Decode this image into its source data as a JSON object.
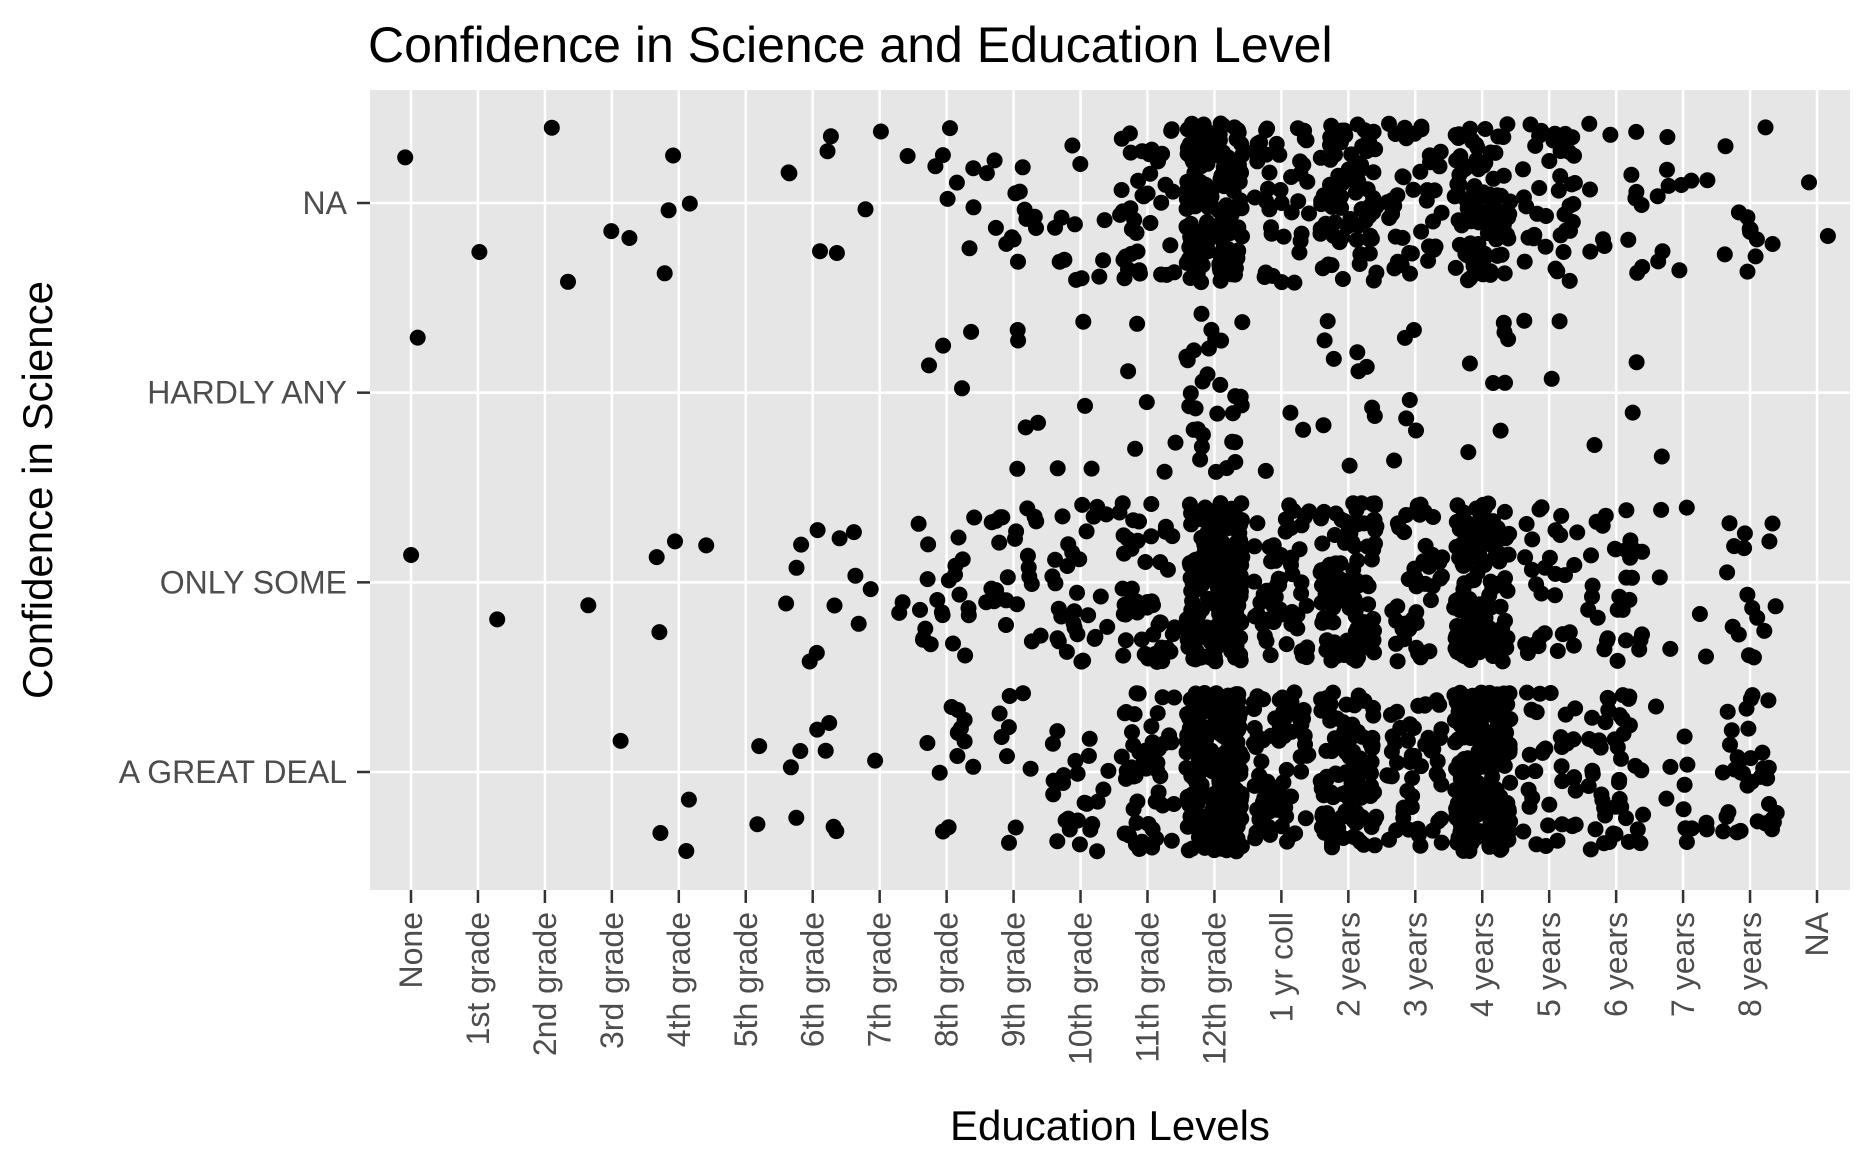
{
  "chart_data": {
    "type": "scatter",
    "jitter": true,
    "title": "Confidence in Science and Education Level",
    "xlabel": "Education Levels",
    "ylabel": "Confidence in Science",
    "x_categories": [
      "None",
      "1st grade",
      "2nd grade",
      "3rd grade",
      "4th grade",
      "5th grade",
      "6th grade",
      "7th grade",
      "8th grade",
      "9th grade",
      "10th grade",
      "11th grade",
      "12th grade",
      "1 yr coll",
      "2 years",
      "3 years",
      "4 years",
      "5 years",
      "6 years",
      "7 years",
      "8 years",
      "NA"
    ],
    "y_categories": [
      "A GREAT DEAL",
      "ONLY SOME",
      "HARDLY ANY",
      "NA"
    ],
    "grid": true,
    "panel_background": "#e6e6e6",
    "point_color": "#000000",
    "approx_counts": {
      "NA": [
        1,
        1,
        2,
        2,
        4,
        0,
        6,
        3,
        8,
        14,
        12,
        40,
        160,
        40,
        80,
        40,
        90,
        40,
        14,
        10,
        12,
        2
      ],
      "HARDLY ANY": [
        1,
        0,
        0,
        0,
        0,
        0,
        0,
        0,
        4,
        5,
        4,
        6,
        30,
        3,
        10,
        6,
        8,
        3,
        3,
        1,
        0,
        0
      ],
      "ONLY SOME": [
        1,
        1,
        0,
        1,
        4,
        0,
        8,
        6,
        22,
        26,
        30,
        50,
        190,
        55,
        110,
        45,
        120,
        28,
        30,
        6,
        16,
        0
      ],
      "A GREAT DEAL": [
        0,
        0,
        0,
        1,
        3,
        2,
        8,
        1,
        12,
        9,
        24,
        52,
        240,
        70,
        100,
        50,
        250,
        34,
        45,
        12,
        34,
        0
      ]
    }
  }
}
